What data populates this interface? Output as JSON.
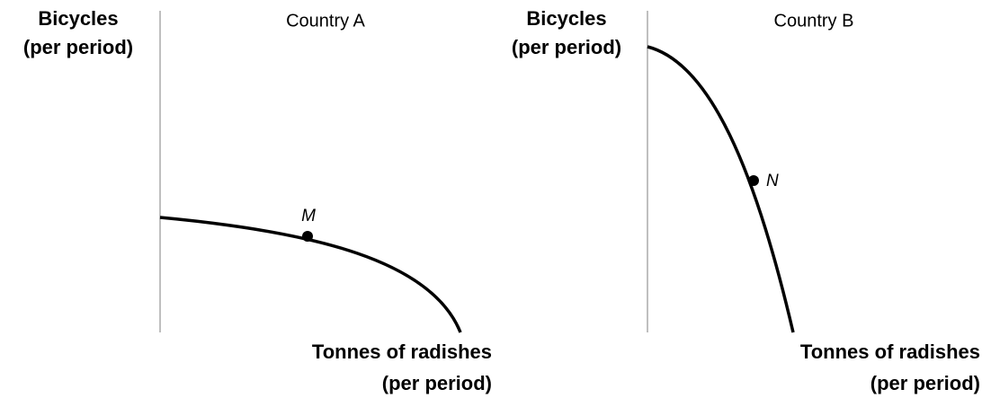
{
  "panels": [
    {
      "title": "Country A",
      "y_label": [
        "Bicycles",
        "(per period)"
      ],
      "x_label": [
        "Tonnes of radishes",
        "(per period)"
      ],
      "point": "M"
    },
    {
      "title": "Country B",
      "y_label": [
        "Bicycles",
        "(per period)"
      ],
      "x_label": [
        "Tonnes of radishes",
        "(per period)"
      ],
      "point": "N"
    }
  ]
}
